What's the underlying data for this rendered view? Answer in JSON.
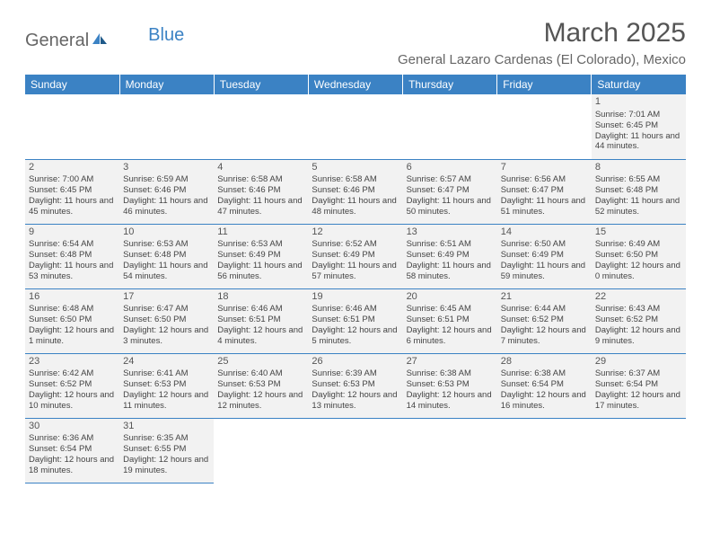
{
  "logo": {
    "part1": "General",
    "part2": "Blue"
  },
  "title": "March 2025",
  "location": "General Lazaro Cardenas (El Colorado), Mexico",
  "columns": [
    "Sunday",
    "Monday",
    "Tuesday",
    "Wednesday",
    "Thursday",
    "Friday",
    "Saturday"
  ],
  "colors": {
    "header_bg": "#3b82c4",
    "header_fg": "#ffffff",
    "cell_bg": "#f2f2f2",
    "border": "#3b82c4",
    "text": "#444444",
    "title": "#555555"
  },
  "weeks": [
    [
      null,
      null,
      null,
      null,
      null,
      null,
      {
        "n": "1",
        "sr": "7:01 AM",
        "ss": "6:45 PM",
        "dl": "11 hours and 44 minutes."
      }
    ],
    [
      {
        "n": "2",
        "sr": "7:00 AM",
        "ss": "6:45 PM",
        "dl": "11 hours and 45 minutes."
      },
      {
        "n": "3",
        "sr": "6:59 AM",
        "ss": "6:46 PM",
        "dl": "11 hours and 46 minutes."
      },
      {
        "n": "4",
        "sr": "6:58 AM",
        "ss": "6:46 PM",
        "dl": "11 hours and 47 minutes."
      },
      {
        "n": "5",
        "sr": "6:58 AM",
        "ss": "6:46 PM",
        "dl": "11 hours and 48 minutes."
      },
      {
        "n": "6",
        "sr": "6:57 AM",
        "ss": "6:47 PM",
        "dl": "11 hours and 50 minutes."
      },
      {
        "n": "7",
        "sr": "6:56 AM",
        "ss": "6:47 PM",
        "dl": "11 hours and 51 minutes."
      },
      {
        "n": "8",
        "sr": "6:55 AM",
        "ss": "6:48 PM",
        "dl": "11 hours and 52 minutes."
      }
    ],
    [
      {
        "n": "9",
        "sr": "6:54 AM",
        "ss": "6:48 PM",
        "dl": "11 hours and 53 minutes."
      },
      {
        "n": "10",
        "sr": "6:53 AM",
        "ss": "6:48 PM",
        "dl": "11 hours and 54 minutes."
      },
      {
        "n": "11",
        "sr": "6:53 AM",
        "ss": "6:49 PM",
        "dl": "11 hours and 56 minutes."
      },
      {
        "n": "12",
        "sr": "6:52 AM",
        "ss": "6:49 PM",
        "dl": "11 hours and 57 minutes."
      },
      {
        "n": "13",
        "sr": "6:51 AM",
        "ss": "6:49 PM",
        "dl": "11 hours and 58 minutes."
      },
      {
        "n": "14",
        "sr": "6:50 AM",
        "ss": "6:49 PM",
        "dl": "11 hours and 59 minutes."
      },
      {
        "n": "15",
        "sr": "6:49 AM",
        "ss": "6:50 PM",
        "dl": "12 hours and 0 minutes."
      }
    ],
    [
      {
        "n": "16",
        "sr": "6:48 AM",
        "ss": "6:50 PM",
        "dl": "12 hours and 1 minute."
      },
      {
        "n": "17",
        "sr": "6:47 AM",
        "ss": "6:50 PM",
        "dl": "12 hours and 3 minutes."
      },
      {
        "n": "18",
        "sr": "6:46 AM",
        "ss": "6:51 PM",
        "dl": "12 hours and 4 minutes."
      },
      {
        "n": "19",
        "sr": "6:46 AM",
        "ss": "6:51 PM",
        "dl": "12 hours and 5 minutes."
      },
      {
        "n": "20",
        "sr": "6:45 AM",
        "ss": "6:51 PM",
        "dl": "12 hours and 6 minutes."
      },
      {
        "n": "21",
        "sr": "6:44 AM",
        "ss": "6:52 PM",
        "dl": "12 hours and 7 minutes."
      },
      {
        "n": "22",
        "sr": "6:43 AM",
        "ss": "6:52 PM",
        "dl": "12 hours and 9 minutes."
      }
    ],
    [
      {
        "n": "23",
        "sr": "6:42 AM",
        "ss": "6:52 PM",
        "dl": "12 hours and 10 minutes."
      },
      {
        "n": "24",
        "sr": "6:41 AM",
        "ss": "6:53 PM",
        "dl": "12 hours and 11 minutes."
      },
      {
        "n": "25",
        "sr": "6:40 AM",
        "ss": "6:53 PM",
        "dl": "12 hours and 12 minutes."
      },
      {
        "n": "26",
        "sr": "6:39 AM",
        "ss": "6:53 PM",
        "dl": "12 hours and 13 minutes."
      },
      {
        "n": "27",
        "sr": "6:38 AM",
        "ss": "6:53 PM",
        "dl": "12 hours and 14 minutes."
      },
      {
        "n": "28",
        "sr": "6:38 AM",
        "ss": "6:54 PM",
        "dl": "12 hours and 16 minutes."
      },
      {
        "n": "29",
        "sr": "6:37 AM",
        "ss": "6:54 PM",
        "dl": "12 hours and 17 minutes."
      }
    ],
    [
      {
        "n": "30",
        "sr": "6:36 AM",
        "ss": "6:54 PM",
        "dl": "12 hours and 18 minutes."
      },
      {
        "n": "31",
        "sr": "6:35 AM",
        "ss": "6:55 PM",
        "dl": "12 hours and 19 minutes."
      },
      null,
      null,
      null,
      null,
      null
    ]
  ],
  "labels": {
    "sunrise": "Sunrise:",
    "sunset": "Sunset:",
    "daylight": "Daylight:"
  }
}
